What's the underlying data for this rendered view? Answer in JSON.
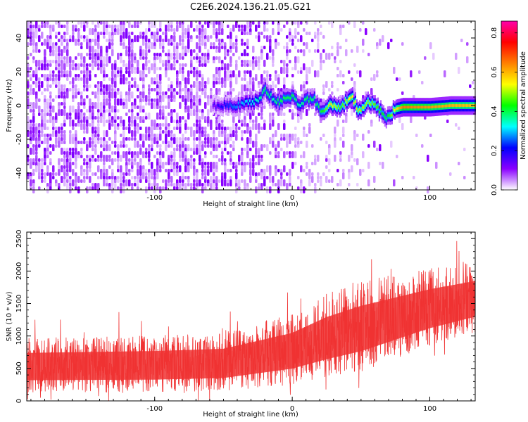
{
  "title": "C2E6.2024.136.21.05.G21",
  "chart_data": [
    {
      "type": "heatmap",
      "xlabel": "Height of straight line (km)",
      "ylabel": "Frequency (Hz)",
      "xlim": [
        -193,
        133
      ],
      "ylim": [
        -50,
        50
      ],
      "xticks": [
        -100,
        0,
        100
      ],
      "yticks": [
        -40,
        -20,
        0,
        20,
        40
      ],
      "colorbar": {
        "label": "Normalized spectral amplitude",
        "range": [
          0,
          0.86
        ],
        "ticks": [
          "0.0",
          "0.2",
          "0.4",
          "0.6",
          "0.8"
        ],
        "colormap": [
          "#ffffff",
          "#8a00ff",
          "#0000ff",
          "#00ffff",
          "#00ff00",
          "#ffff00",
          "#ff8000",
          "#ff0000",
          "#ff00aa"
        ]
      },
      "ridge": [
        {
          "x": -58,
          "f": 0,
          "a": 0.15
        },
        {
          "x": -45,
          "f": 0,
          "a": 0.25
        },
        {
          "x": -35,
          "f": 1,
          "a": 0.3
        },
        {
          "x": -25,
          "f": 3,
          "a": 0.35
        },
        {
          "x": -20,
          "f": 10,
          "a": 0.4
        },
        {
          "x": -15,
          "f": 4,
          "a": 0.35
        },
        {
          "x": -10,
          "f": 2,
          "a": 0.4
        },
        {
          "x": 0,
          "f": 6,
          "a": 0.4
        },
        {
          "x": 5,
          "f": 0,
          "a": 0.35
        },
        {
          "x": 10,
          "f": 3,
          "a": 0.4
        },
        {
          "x": 15,
          "f": 5,
          "a": 0.38
        },
        {
          "x": 20,
          "f": -4,
          "a": 0.4
        },
        {
          "x": 28,
          "f": 1,
          "a": 0.55
        },
        {
          "x": 35,
          "f": -2,
          "a": 0.45
        },
        {
          "x": 42,
          "f": 6,
          "a": 0.55
        },
        {
          "x": 48,
          "f": -3,
          "a": 0.5
        },
        {
          "x": 55,
          "f": 3,
          "a": 0.5
        },
        {
          "x": 62,
          "f": -2,
          "a": 0.45
        },
        {
          "x": 68,
          "f": -8,
          "a": 0.4
        },
        {
          "x": 75,
          "f": -2,
          "a": 0.55
        },
        {
          "x": 80,
          "f": -1,
          "a": 0.65
        },
        {
          "x": 100,
          "f": -1,
          "a": 0.62
        },
        {
          "x": 115,
          "f": 0,
          "a": 0.6
        },
        {
          "x": 133,
          "f": 0,
          "a": 0.58
        }
      ]
    },
    {
      "type": "line",
      "xlabel": "Height of straight line (km)",
      "ylabel": "SNR (10 * v/v)",
      "xlim": [
        -193,
        133
      ],
      "ylim": [
        0,
        2600
      ],
      "xticks": [
        -100,
        0,
        100
      ],
      "yticks": [
        0,
        500,
        1000,
        1500,
        2000,
        2500
      ],
      "series": [
        {
          "color": "#f03232",
          "envelope": {
            "x": [
              -193,
              -150,
              -100,
              -50,
              0,
              25,
              50,
              75,
              100,
              133
            ],
            "mean": [
              550,
              560,
              570,
              600,
              800,
              1000,
              1150,
              1300,
              1450,
              1600
            ],
            "spread": [
              420,
              430,
              440,
              450,
              550,
              650,
              700,
              650,
              600,
              550
            ]
          }
        }
      ]
    }
  ]
}
